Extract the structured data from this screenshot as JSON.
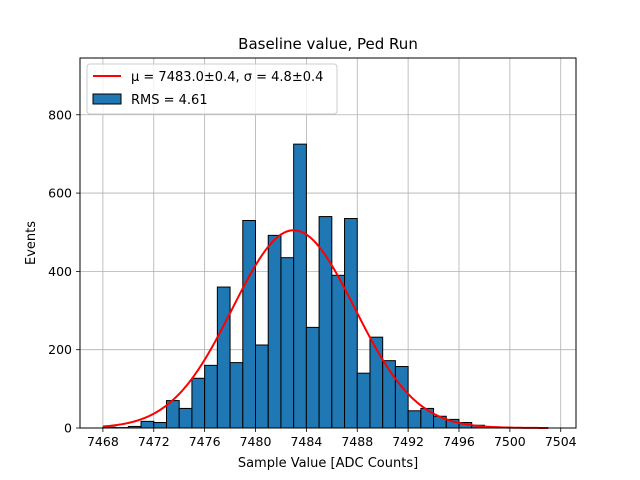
{
  "chart_data": {
    "type": "bar",
    "title": "Baseline value, Ped Run",
    "xlabel": "Sample Value [ADC Counts]",
    "ylabel": "Events",
    "xlim": [
      7466.2,
      7505.2
    ],
    "ylim": [
      0,
      945
    ],
    "xticks": [
      7468,
      7472,
      7476,
      7480,
      7484,
      7488,
      7492,
      7496,
      7500,
      7504
    ],
    "yticks": [
      0,
      200,
      400,
      600,
      800
    ],
    "grid": true,
    "legend_position": "upper-left",
    "bar_color": "#1f77b4",
    "fit_color": "#ff0000",
    "bin_width": 1,
    "bins": [
      {
        "x": 7468,
        "count": 2
      },
      {
        "x": 7469,
        "count": 1
      },
      {
        "x": 7470,
        "count": 4
      },
      {
        "x": 7471,
        "count": 17
      },
      {
        "x": 7472,
        "count": 14
      },
      {
        "x": 7473,
        "count": 70
      },
      {
        "x": 7474,
        "count": 50
      },
      {
        "x": 7475,
        "count": 127
      },
      {
        "x": 7476,
        "count": 160
      },
      {
        "x": 7477,
        "count": 360
      },
      {
        "x": 7478,
        "count": 167
      },
      {
        "x": 7479,
        "count": 530
      },
      {
        "x": 7480,
        "count": 212
      },
      {
        "x": 7481,
        "count": 492
      },
      {
        "x": 7482,
        "count": 435
      },
      {
        "x": 7483,
        "count": 725
      },
      {
        "x": 7484,
        "count": 257
      },
      {
        "x": 7485,
        "count": 540
      },
      {
        "x": 7486,
        "count": 390
      },
      {
        "x": 7487,
        "count": 535
      },
      {
        "x": 7488,
        "count": 140
      },
      {
        "x": 7489,
        "count": 232
      },
      {
        "x": 7490,
        "count": 172
      },
      {
        "x": 7491,
        "count": 157
      },
      {
        "x": 7492,
        "count": 44
      },
      {
        "x": 7493,
        "count": 50
      },
      {
        "x": 7494,
        "count": 30
      },
      {
        "x": 7495,
        "count": 22
      },
      {
        "x": 7496,
        "count": 14
      },
      {
        "x": 7497,
        "count": 7
      },
      {
        "x": 7498,
        "count": 3
      },
      {
        "x": 7499,
        "count": 2
      },
      {
        "x": 7500,
        "count": 1
      },
      {
        "x": 7501,
        "count": 1
      },
      {
        "x": 7502,
        "count": 1
      }
    ],
    "fit": {
      "type": "gaussian",
      "mu": 7483.0,
      "sigma": 4.8,
      "amplitude": 505,
      "x_range": [
        7468,
        7503
      ]
    },
    "legend": {
      "fit_label": "μ = 7483.0±0.4, σ = 4.8±0.4",
      "hist_label": "RMS = 4.61"
    }
  }
}
